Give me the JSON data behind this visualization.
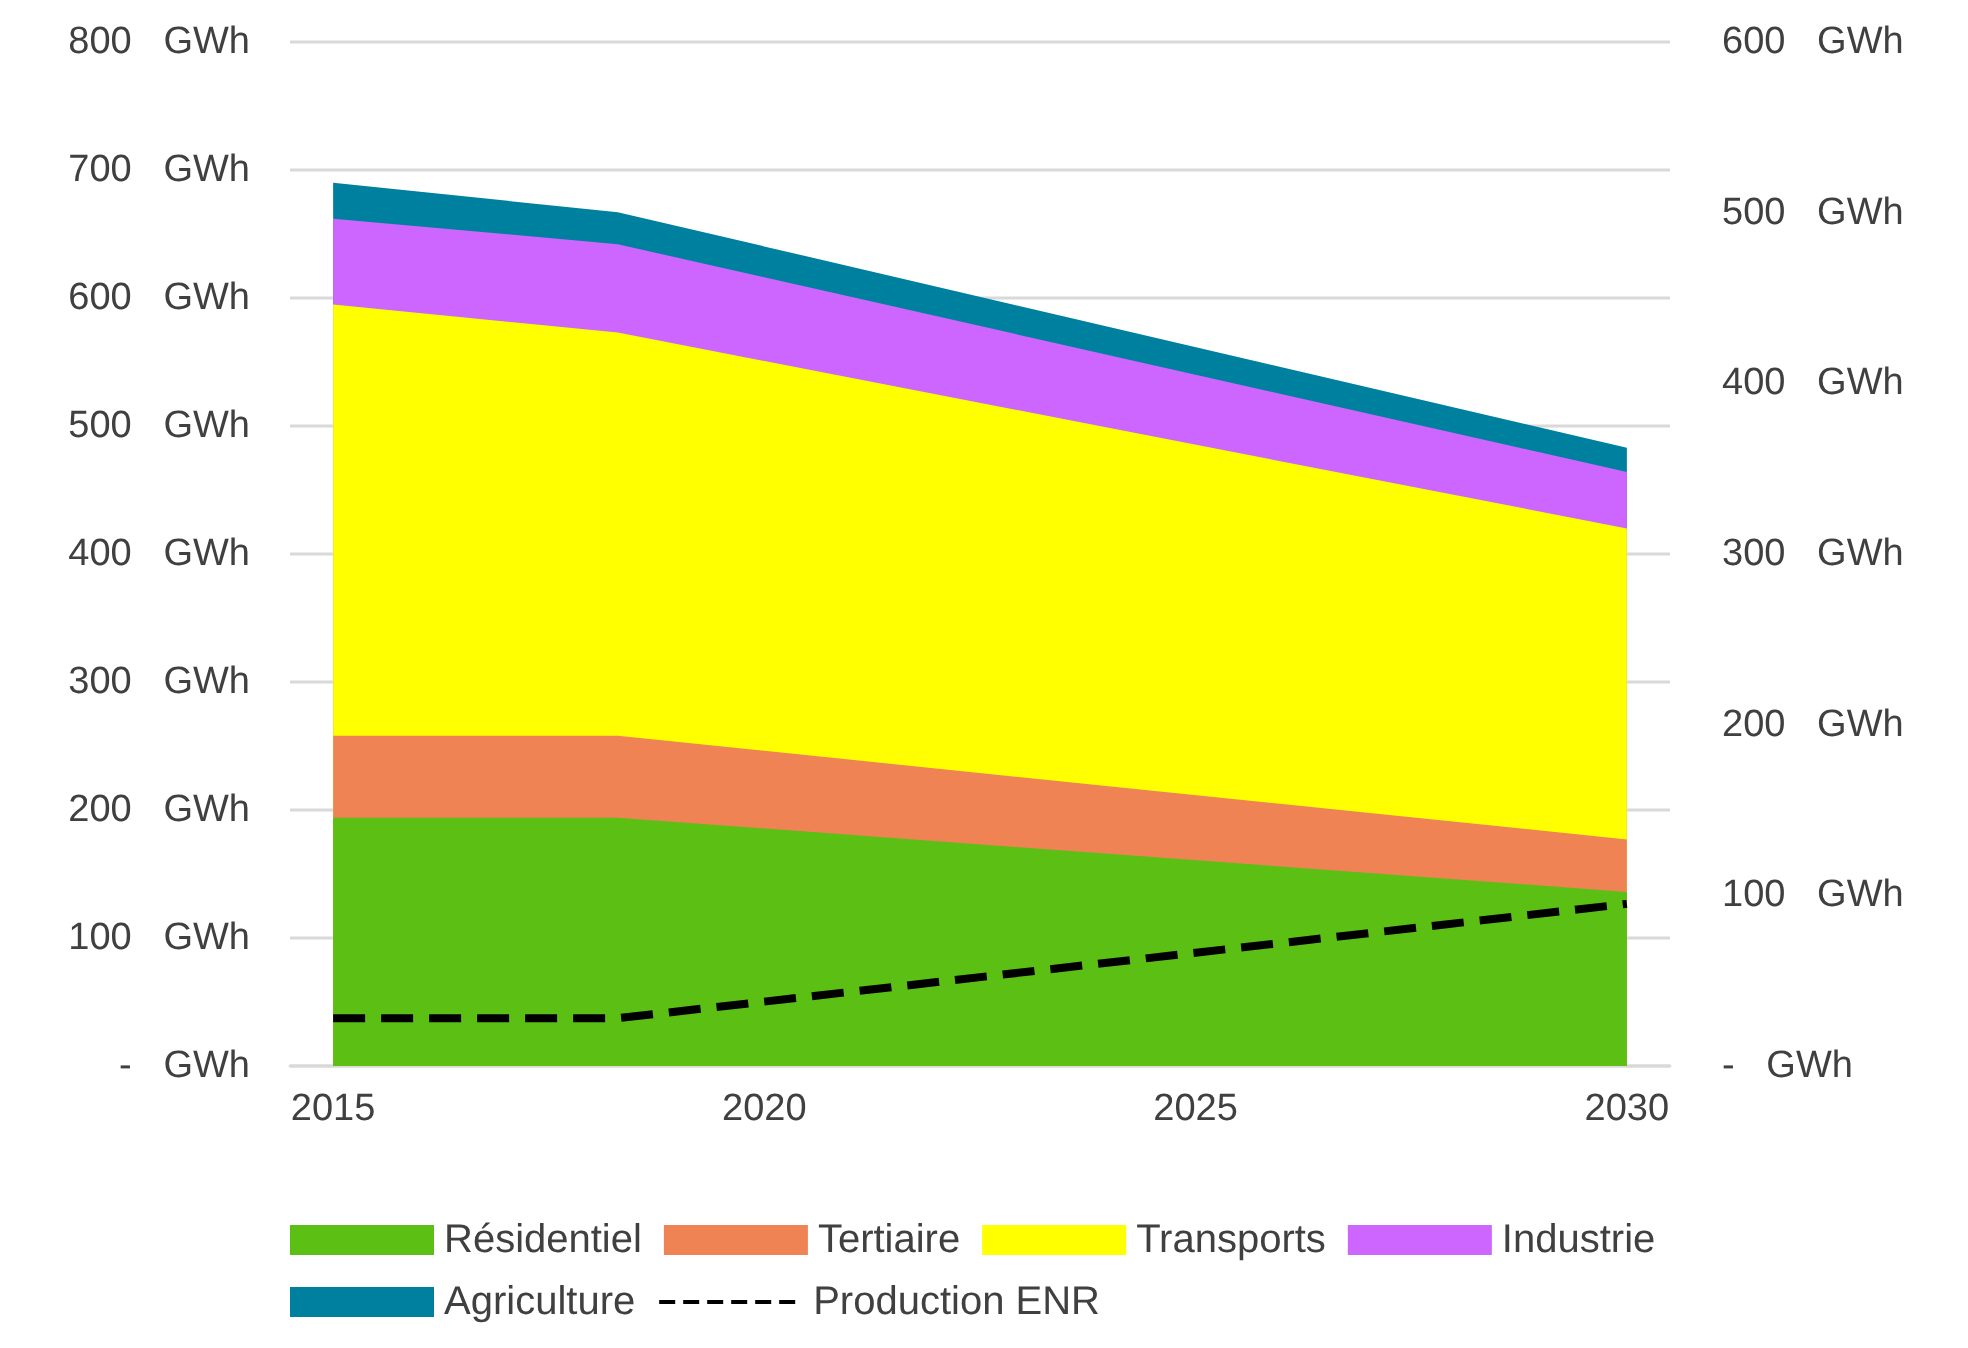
{
  "chart_data": {
    "type": "area",
    "stacked": true,
    "x": [
      2015,
      2018.3,
      2030
    ],
    "series": [
      {
        "name": "Résidentiel",
        "color": "#5cbf14",
        "values": [
          194,
          194,
          136
        ]
      },
      {
        "name": "Tertiaire",
        "color": "#ef8354",
        "values": [
          64,
          64,
          41
        ]
      },
      {
        "name": "Transports",
        "color": "#ffff00",
        "values": [
          337,
          315,
          243
        ]
      },
      {
        "name": "Industrie",
        "color": "#cc66ff",
        "values": [
          67,
          69,
          44
        ]
      },
      {
        "name": "Agriculture",
        "color": "#00809f",
        "values": [
          28,
          25,
          19
        ]
      },
      {
        "name": "Production ENR",
        "type": "line",
        "axis": "y2",
        "color": "#000000",
        "line_style": "dashed",
        "marker": "none",
        "values": [
          28,
          28,
          95
        ]
      }
    ],
    "xlim": [
      2014.5,
      2030.5
    ],
    "xticks": [
      2015,
      2020,
      2025,
      2030
    ],
    "ylim": [
      0,
      800
    ],
    "yticks": [
      {
        "value": 0,
        "label": "-   GWh"
      },
      {
        "value": 100,
        "label": "100   GWh"
      },
      {
        "value": 200,
        "label": "200   GWh"
      },
      {
        "value": 300,
        "label": "300   GWh"
      },
      {
        "value": 400,
        "label": "400   GWh"
      },
      {
        "value": 500,
        "label": "500   GWh"
      },
      {
        "value": 600,
        "label": "600   GWh"
      },
      {
        "value": 700,
        "label": "700   GWh"
      },
      {
        "value": 800,
        "label": "800   GWh"
      }
    ],
    "y2lim": [
      0,
      600
    ],
    "y2ticks": [
      {
        "value": 0,
        "label": "-   GWh"
      },
      {
        "value": 100,
        "label": "100   GWh"
      },
      {
        "value": 200,
        "label": "200   GWh"
      },
      {
        "value": 300,
        "label": "300   GWh"
      },
      {
        "value": 400,
        "label": "400   GWh"
      },
      {
        "value": 500,
        "label": "500   GWh"
      },
      {
        "value": 600,
        "label": "600   GWh"
      }
    ],
    "grid": "y",
    "legend": "bottom"
  }
}
